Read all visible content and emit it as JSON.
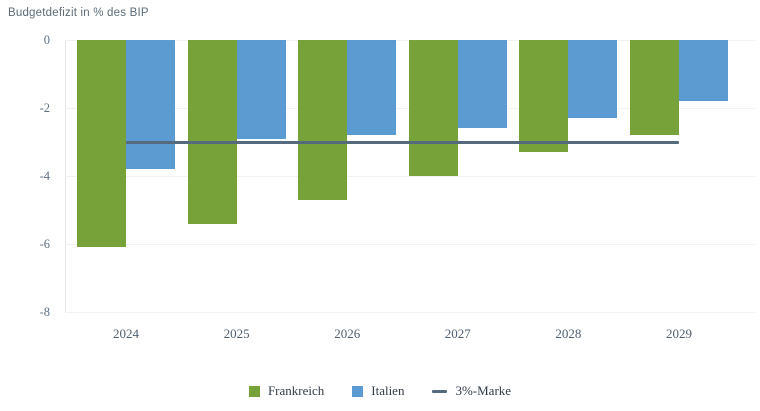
{
  "chart_data": {
    "type": "bar",
    "title": "Budgetdefizit in % des BIP",
    "categories": [
      "2024",
      "2025",
      "2026",
      "2027",
      "2028",
      "2029"
    ],
    "series": [
      {
        "name": "Frankreich",
        "kind": "bar",
        "color": "#77a23a",
        "values": [
          -6.1,
          -5.4,
          -4.7,
          -4.0,
          -3.3,
          -2.8
        ]
      },
      {
        "name": "Italien",
        "kind": "bar",
        "color": "#5b9bd1",
        "values": [
          -3.8,
          -2.9,
          -2.8,
          -2.6,
          -2.3,
          -1.8
        ]
      },
      {
        "name": "3%-Marke",
        "kind": "line",
        "color": "#566a7e",
        "values": [
          -3,
          -3,
          -3,
          -3,
          -3,
          -3
        ]
      }
    ],
    "ylabel": "",
    "xlabel": "",
    "ylim": [
      -8,
      0
    ],
    "yticks": [
      0,
      -2,
      -4,
      -6,
      -8
    ],
    "grid": true,
    "legend_position": "bottom"
  }
}
